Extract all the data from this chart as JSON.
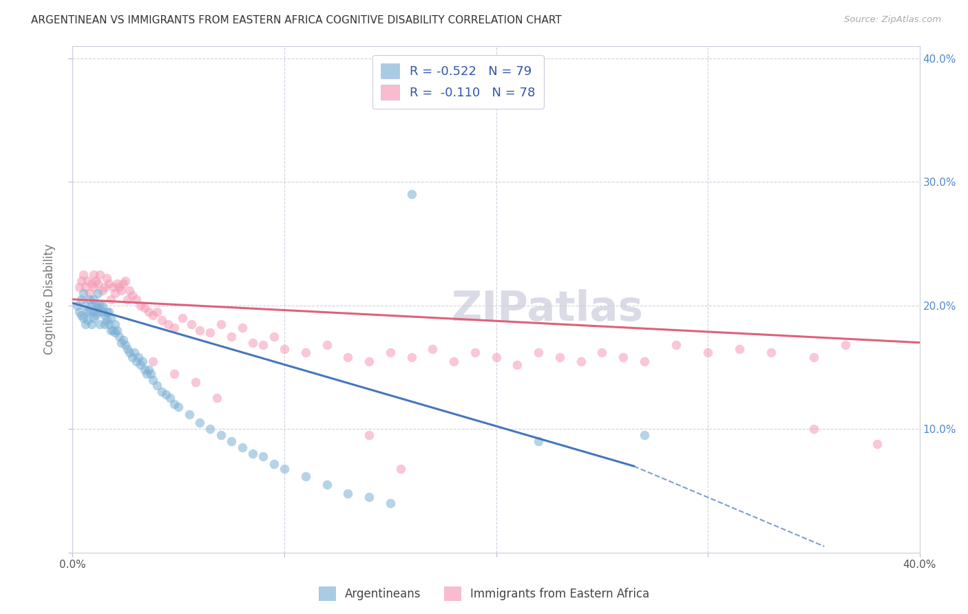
{
  "title": "ARGENTINEAN VS IMMIGRANTS FROM EASTERN AFRICA COGNITIVE DISABILITY CORRELATION CHART",
  "source": "Source: ZipAtlas.com",
  "ylabel": "Cognitive Disability",
  "xlim": [
    0.0,
    0.4
  ],
  "ylim": [
    0.0,
    0.41
  ],
  "blue_color": "#7BAFD4",
  "pink_color": "#F599B4",
  "blue_line_color": "#4477BB",
  "pink_line_color": "#E0607A",
  "watermark": "ZIPatlas",
  "background_color": "#FFFFFF",
  "grid_color": "#D0D0E0",
  "R_blue": -0.522,
  "N_blue": 79,
  "R_pink": -0.11,
  "N_pink": 78,
  "arg_x": [
    0.002,
    0.003,
    0.004,
    0.004,
    0.005,
    0.005,
    0.006,
    0.006,
    0.007,
    0.007,
    0.008,
    0.008,
    0.009,
    0.009,
    0.01,
    0.01,
    0.01,
    0.011,
    0.011,
    0.012,
    0.012,
    0.012,
    0.013,
    0.013,
    0.014,
    0.014,
    0.015,
    0.015,
    0.016,
    0.016,
    0.017,
    0.017,
    0.018,
    0.018,
    0.019,
    0.02,
    0.02,
    0.021,
    0.022,
    0.023,
    0.024,
    0.025,
    0.026,
    0.027,
    0.028,
    0.029,
    0.03,
    0.031,
    0.032,
    0.033,
    0.034,
    0.035,
    0.036,
    0.037,
    0.038,
    0.04,
    0.042,
    0.044,
    0.046,
    0.048,
    0.05,
    0.055,
    0.06,
    0.065,
    0.07,
    0.075,
    0.08,
    0.085,
    0.09,
    0.095,
    0.1,
    0.11,
    0.12,
    0.13,
    0.14,
    0.15,
    0.16,
    0.22,
    0.27
  ],
  "arg_y": [
    0.2,
    0.195,
    0.192,
    0.205,
    0.19,
    0.21,
    0.185,
    0.2,
    0.195,
    0.188,
    0.205,
    0.195,
    0.2,
    0.185,
    0.205,
    0.195,
    0.19,
    0.2,
    0.192,
    0.198,
    0.195,
    0.21,
    0.2,
    0.185,
    0.195,
    0.2,
    0.192,
    0.185,
    0.195,
    0.188,
    0.185,
    0.195,
    0.18,
    0.19,
    0.18,
    0.185,
    0.178,
    0.18,
    0.175,
    0.17,
    0.172,
    0.168,
    0.165,
    0.162,
    0.158,
    0.162,
    0.155,
    0.158,
    0.152,
    0.155,
    0.148,
    0.145,
    0.148,
    0.145,
    0.14,
    0.135,
    0.13,
    0.128,
    0.125,
    0.12,
    0.118,
    0.112,
    0.105,
    0.1,
    0.095,
    0.09,
    0.085,
    0.08,
    0.078,
    0.072,
    0.068,
    0.062,
    0.055,
    0.048,
    0.045,
    0.04,
    0.29,
    0.09,
    0.095
  ],
  "ea_x": [
    0.003,
    0.004,
    0.005,
    0.006,
    0.007,
    0.008,
    0.009,
    0.01,
    0.01,
    0.011,
    0.012,
    0.013,
    0.014,
    0.015,
    0.016,
    0.017,
    0.018,
    0.019,
    0.02,
    0.021,
    0.022,
    0.023,
    0.024,
    0.025,
    0.026,
    0.027,
    0.028,
    0.03,
    0.032,
    0.034,
    0.036,
    0.038,
    0.04,
    0.042,
    0.045,
    0.048,
    0.052,
    0.056,
    0.06,
    0.065,
    0.07,
    0.075,
    0.08,
    0.085,
    0.09,
    0.095,
    0.1,
    0.11,
    0.12,
    0.13,
    0.14,
    0.15,
    0.16,
    0.17,
    0.18,
    0.19,
    0.2,
    0.21,
    0.22,
    0.23,
    0.24,
    0.25,
    0.26,
    0.27,
    0.285,
    0.3,
    0.315,
    0.33,
    0.35,
    0.365,
    0.038,
    0.048,
    0.058,
    0.068,
    0.14,
    0.155,
    0.35,
    0.38
  ],
  "ea_y": [
    0.215,
    0.22,
    0.225,
    0.215,
    0.22,
    0.21,
    0.218,
    0.225,
    0.215,
    0.22,
    0.218,
    0.225,
    0.212,
    0.215,
    0.222,
    0.218,
    0.205,
    0.215,
    0.21,
    0.218,
    0.215,
    0.212,
    0.218,
    0.22,
    0.205,
    0.212,
    0.208,
    0.205,
    0.2,
    0.198,
    0.195,
    0.192,
    0.195,
    0.188,
    0.185,
    0.182,
    0.19,
    0.185,
    0.18,
    0.178,
    0.185,
    0.175,
    0.182,
    0.17,
    0.168,
    0.175,
    0.165,
    0.162,
    0.168,
    0.158,
    0.155,
    0.162,
    0.158,
    0.165,
    0.155,
    0.162,
    0.158,
    0.152,
    0.162,
    0.158,
    0.155,
    0.162,
    0.158,
    0.155,
    0.168,
    0.162,
    0.165,
    0.162,
    0.158,
    0.168,
    0.155,
    0.145,
    0.138,
    0.125,
    0.095,
    0.068,
    0.1,
    0.088
  ],
  "blue_line_x0": 0.0,
  "blue_line_x_solid_end": 0.265,
  "blue_line_x_dashed_end": 0.355,
  "blue_line_y_at_0": 0.202,
  "blue_line_y_at_solid_end": 0.07,
  "blue_line_y_at_dashed_end": 0.005,
  "pink_line_x0": 0.0,
  "pink_line_x_end": 0.4,
  "pink_line_y_at_0": 0.205,
  "pink_line_y_at_end": 0.17
}
